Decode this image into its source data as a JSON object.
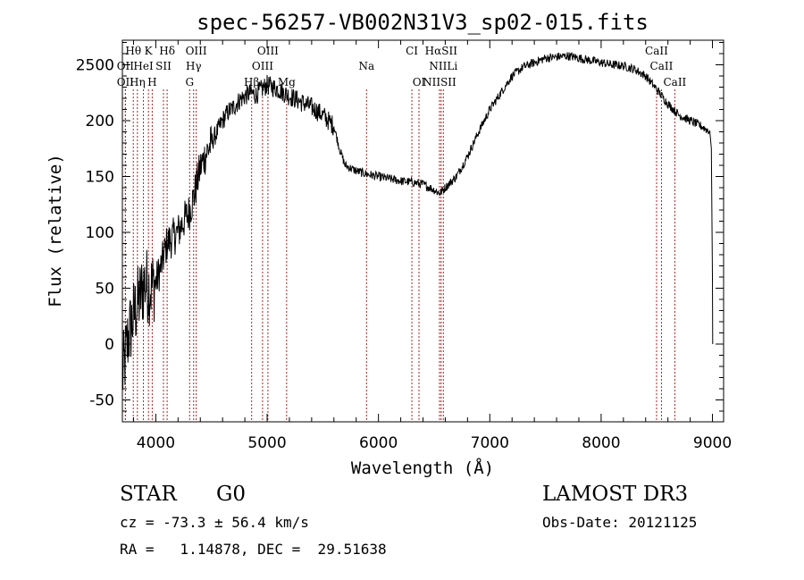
{
  "chart_data": {
    "type": "line",
    "title": "spec-56257-VB002N31V3_sp02-015.fits",
    "xlabel": "Wavelength (Å)",
    "ylabel": "Flux (relative)",
    "xlim": [
      3700,
      9100
    ],
    "ylim": [
      -70,
      2750
    ],
    "x_ticks": [
      4000,
      5000,
      6000,
      7000,
      8000,
      9000
    ],
    "x_tick_labels": [
      "4000",
      "5000",
      "6000",
      "7000",
      "8000",
      "9000"
    ],
    "y_ticks": [
      -50,
      0,
      50,
      100,
      150,
      200,
      2500
    ],
    "y_tick_labels": [
      "-50",
      "0",
      "50",
      "100",
      "150",
      "200",
      "2500"
    ],
    "series": [
      {
        "name": "flux",
        "anchors": [
          [
            3700,
            -30
          ],
          [
            3750,
            5
          ],
          [
            3800,
            25
          ],
          [
            3850,
            40
          ],
          [
            3900,
            55
          ],
          [
            3950,
            50
          ],
          [
            4000,
            55
          ],
          [
            4050,
            70
          ],
          [
            4100,
            90
          ],
          [
            4150,
            95
          ],
          [
            4200,
            100
          ],
          [
            4250,
            110
          ],
          [
            4300,
            118
          ],
          [
            4350,
            135
          ],
          [
            4400,
            158
          ],
          [
            4450,
            170
          ],
          [
            4500,
            180
          ],
          [
            4550,
            190
          ],
          [
            4600,
            200
          ],
          [
            4650,
            208
          ],
          [
            4700,
            212
          ],
          [
            4750,
            218
          ],
          [
            4800,
            222
          ],
          [
            4850,
            225
          ],
          [
            4900,
            223
          ],
          [
            4950,
            228
          ],
          [
            5000,
            232
          ],
          [
            5050,
            230
          ],
          [
            5100,
            228
          ],
          [
            5150,
            225
          ],
          [
            5200,
            222
          ],
          [
            5300,
            217
          ],
          [
            5400,
            212
          ],
          [
            5500,
            205
          ],
          [
            5600,
            195
          ],
          [
            5650,
            175
          ],
          [
            5700,
            160
          ],
          [
            5800,
            155
          ],
          [
            5900,
            152
          ],
          [
            6000,
            150
          ],
          [
            6100,
            148
          ],
          [
            6200,
            146
          ],
          [
            6300,
            145
          ],
          [
            6400,
            143
          ],
          [
            6500,
            138
          ],
          [
            6550,
            135
          ],
          [
            6600,
            140
          ],
          [
            6700,
            150
          ],
          [
            6800,
            168
          ],
          [
            6900,
            190
          ],
          [
            7000,
            210
          ],
          [
            7100,
            225
          ],
          [
            7200,
            240
          ],
          [
            7300,
            248
          ],
          [
            7400,
            252
          ],
          [
            7500,
            256
          ],
          [
            7600,
            257
          ],
          [
            7700,
            258
          ],
          [
            7800,
            256
          ],
          [
            7900,
            254
          ],
          [
            8000,
            252
          ],
          [
            8100,
            250
          ],
          [
            8200,
            249
          ],
          [
            8300,
            246
          ],
          [
            8400,
            240
          ],
          [
            8500,
            228
          ],
          [
            8600,
            215
          ],
          [
            8700,
            205
          ],
          [
            8800,
            200
          ],
          [
            8900,
            195
          ],
          [
            8980,
            190
          ]
        ],
        "tail": [
          [
            8990,
            175
          ],
          [
            9000,
            60
          ],
          [
            9002,
            0
          ]
        ]
      }
    ],
    "line_markers": [
      {
        "label": "Hθ",
        "x": 3798,
        "row": 0
      },
      {
        "label": "K",
        "x": 3934,
        "row": 0
      },
      {
        "label": "Hδ",
        "x": 4102,
        "row": 0
      },
      {
        "label": "OIII",
        "x": 4363,
        "row": 0
      },
      {
        "label": "OIII",
        "x": 5007,
        "row": 0
      },
      {
        "label": "CI",
        "x": 6300,
        "row": 0
      },
      {
        "label": "HαSII",
        "x": 6563,
        "row": 0
      },
      {
        "label": "CaII",
        "x": 8498,
        "row": 0
      },
      {
        "label": "OII",
        "x": 3727,
        "row": 1
      },
      {
        "label": "HeI",
        "x": 3889,
        "row": 1
      },
      {
        "label": "SII",
        "x": 4069,
        "row": 1
      },
      {
        "label": "Hγ",
        "x": 4340,
        "row": 1
      },
      {
        "label": "OIII",
        "x": 4959,
        "row": 1
      },
      {
        "label": "Na",
        "x": 5893,
        "row": 1
      },
      {
        "label": "NIILi",
        "x": 6583,
        "row": 1
      },
      {
        "label": "CaII",
        "x": 8542,
        "row": 1
      },
      {
        "label": "OII",
        "x": 3727,
        "row": 2
      },
      {
        "label": "Hη",
        "x": 3835,
        "row": 2
      },
      {
        "label": "H",
        "x": 3968,
        "row": 2
      },
      {
        "label": "G",
        "x": 4304,
        "row": 2
      },
      {
        "label": "Hβ",
        "x": 4861,
        "row": 2
      },
      {
        "label": "Mg",
        "x": 5175,
        "row": 2
      },
      {
        "label": "OI",
        "x": 6364,
        "row": 2
      },
      {
        "label": "NIISII",
        "x": 6548,
        "row": 2
      },
      {
        "label": "CaII",
        "x": 8662,
        "row": 2
      }
    ]
  },
  "info": {
    "object_class": "STAR",
    "subclass": "G0",
    "survey": "LAMOST DR3",
    "redshift": "cz = -73.3 ± 56.4 km/s",
    "obs_date": "Obs-Date: 20121125",
    "coords": "RA =   1.14878, DEC =  29.51638"
  },
  "colors": {
    "spectrum": "#000000",
    "line_marker": "#b22222",
    "axis": "#000000"
  }
}
